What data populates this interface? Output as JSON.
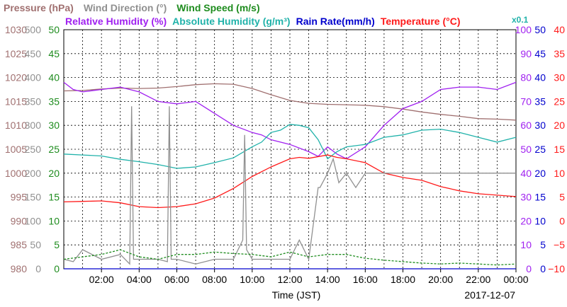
{
  "chart_data": {
    "type": "line",
    "date": "2017-12-07",
    "xlabel": "Time (JST)",
    "x_ticks": [
      "02:00",
      "04:00",
      "06:00",
      "08:00",
      "10:00",
      "12:00",
      "14:00",
      "16:00",
      "18:00",
      "20:00",
      "22:00",
      "00:00"
    ],
    "grid": true,
    "legend_row1": [
      {
        "key": "pressure",
        "text": "Pressure (hPa)",
        "color": "#a07070"
      },
      {
        "key": "winddir",
        "text": "Wind Direction (°)",
        "color": "#909090"
      },
      {
        "key": "windspeed",
        "text": "Wind Speed (m/s)",
        "color": "#1e8c1e"
      }
    ],
    "legend_row2": [
      {
        "key": "rh",
        "text": "Relative Humidity (%)",
        "color": "#a020f0"
      },
      {
        "key": "ah",
        "text": "Absolute Humidity (g/m³)",
        "color": "#20b2aa"
      },
      {
        "key": "rain",
        "text": "Rain Rate(mm/h)",
        "color": "#0000cd"
      },
      {
        "key": "temp",
        "text": "Temperature (°C)",
        "color": "#ff1a1a"
      }
    ],
    "ah_scale_note": "x0.1",
    "axes": {
      "pressure": {
        "min": 980,
        "max": 1030,
        "ticks": [
          980,
          985,
          990,
          995,
          1000,
          1005,
          1010,
          1015,
          1020,
          1025,
          1030
        ],
        "color": "#a07070"
      },
      "winddir": {
        "min": 0,
        "max": 500,
        "ticks": [
          0,
          50,
          100,
          150,
          200,
          250,
          300,
          350,
          400,
          450,
          500
        ],
        "color": "#909090"
      },
      "windspeed": {
        "min": 0,
        "max": 50,
        "ticks": [
          0,
          5,
          10,
          15,
          20,
          25,
          30,
          35,
          40,
          45,
          50
        ],
        "color": "#1e8c1e"
      },
      "rh": {
        "min": 0,
        "max": 100,
        "ticks": [
          0,
          10,
          20,
          30,
          40,
          50,
          60,
          70,
          80,
          90,
          100
        ],
        "color": "#a020f0"
      },
      "rain": {
        "min": 0,
        "max": 50,
        "ticks": [
          0,
          5,
          10,
          15,
          20,
          25,
          30,
          35,
          40,
          45,
          50
        ],
        "color": "#0000cd"
      },
      "temp": {
        "min": -10,
        "max": 40,
        "ticks": [
          -10,
          -5,
          0,
          5,
          10,
          15,
          20,
          25,
          30,
          35,
          40
        ],
        "color": "#ff1a1a"
      }
    },
    "series": [
      {
        "key": "pressure",
        "name": "Pressure (hPa)",
        "axis": "pressure",
        "color": "#a07070",
        "x": [
          0,
          1,
          2,
          3,
          4,
          5,
          6,
          7,
          8,
          9,
          10,
          11,
          12,
          13,
          14,
          15,
          16,
          17,
          18,
          19,
          20,
          21,
          22,
          23,
          24
        ],
        "y": [
          1017.2,
          1017.3,
          1017.6,
          1017.8,
          1017.7,
          1017.8,
          1018.1,
          1018.5,
          1018.7,
          1018.6,
          1017.7,
          1016.4,
          1015.2,
          1014.6,
          1014.4,
          1014.3,
          1014.2,
          1013.9,
          1013.4,
          1012.8,
          1012.3,
          1011.9,
          1011.4,
          1011.3,
          1011.1
        ]
      },
      {
        "key": "rh",
        "name": "Relative Humidity (%)",
        "axis": "rh",
        "color": "#a020f0",
        "x": [
          0,
          0.5,
          1,
          2,
          3,
          4,
          5,
          6,
          7,
          8,
          9,
          10,
          10.5,
          11,
          12,
          13,
          13.5,
          14,
          14.5,
          15,
          16,
          17,
          18,
          19,
          20,
          21,
          22,
          23,
          24
        ],
        "y": [
          78,
          75,
          74,
          75,
          76,
          74,
          70,
          69,
          70,
          65,
          60,
          57,
          56,
          54,
          52,
          49,
          47,
          51,
          48,
          46,
          51,
          60,
          67,
          70,
          75,
          76,
          76,
          75,
          78
        ]
      },
      {
        "key": "ah",
        "name": "Absolute Humidity (g/m³)",
        "axis": "windspeed",
        "color": "#20b2aa",
        "x": [
          0,
          1,
          2,
          3,
          4,
          5,
          6,
          7,
          8,
          9,
          10,
          10.5,
          11,
          11.5,
          12,
          12.5,
          13,
          13.5,
          14,
          14.5,
          15,
          16,
          17,
          18,
          19,
          20,
          21,
          22,
          23,
          24
        ],
        "y": [
          24,
          23.8,
          23.6,
          22.9,
          22.4,
          21.8,
          21,
          21.3,
          22.2,
          23.2,
          25.5,
          26.5,
          28.5,
          29,
          30.2,
          30,
          29.5,
          27,
          23,
          24.5,
          25.5,
          26,
          27.5,
          28,
          29,
          29.2,
          28.5,
          27.5,
          26.5,
          27.5
        ]
      },
      {
        "key": "temp",
        "name": "Temperature (°C)",
        "axis": "temp",
        "color": "#ff1a1a",
        "x": [
          0,
          1,
          2,
          3,
          4,
          5,
          6,
          7,
          8,
          9,
          10,
          11,
          12,
          12.5,
          13,
          14,
          14.5,
          15,
          16,
          17,
          18,
          19,
          20,
          21,
          22,
          23,
          24
        ],
        "y": [
          4,
          4.1,
          4.2,
          3.8,
          3,
          2.8,
          3,
          3.6,
          4.8,
          6.8,
          9.3,
          11.3,
          13,
          13.3,
          13.1,
          13.8,
          13.3,
          13,
          12.2,
          10,
          9.1,
          8.5,
          7.2,
          6.3,
          5.7,
          5.4,
          5.1
        ]
      },
      {
        "key": "winddir",
        "name": "Wind Direction (°)",
        "axis": "winddir",
        "color": "#909090",
        "x": [
          0,
          0.5,
          1,
          2,
          3,
          3.5,
          3.6,
          3.7,
          4,
          5,
          5.5,
          5.6,
          5.7,
          6,
          7,
          8,
          9,
          9.5,
          9.6,
          9.7,
          10,
          11,
          11.5,
          12,
          12.5,
          13,
          13.5,
          13.6,
          14,
          14.3,
          14.6,
          15,
          15.5,
          16,
          18,
          20,
          22,
          24
        ],
        "y": [
          20,
          15,
          40,
          20,
          30,
          10,
          340,
          20,
          20,
          20,
          15,
          340,
          20,
          20,
          10,
          20,
          20,
          60,
          280,
          40,
          20,
          20,
          20,
          20,
          60,
          20,
          170,
          170,
          200,
          230,
          180,
          200,
          170,
          200,
          200,
          200,
          200,
          200
        ]
      },
      {
        "key": "windspeed",
        "name": "Wind Speed (m/s)",
        "axis": "windspeed",
        "color": "#1e8c1e",
        "x": [
          0,
          1,
          2,
          3,
          4,
          5,
          6,
          7,
          8,
          9,
          10,
          11,
          12,
          13,
          14,
          15,
          16,
          17,
          18,
          19,
          20,
          21,
          22,
          23,
          24
        ],
        "y": [
          2,
          2.5,
          3,
          4,
          2.5,
          2,
          3,
          3,
          3.5,
          3.2,
          3,
          2.5,
          3.5,
          2.5,
          3,
          3,
          2.2,
          1.8,
          1.5,
          1.2,
          1,
          1.2,
          1,
          0.8,
          1
        ]
      },
      {
        "key": "rain",
        "name": "Rain Rate(mm/h)",
        "axis": "rain",
        "color": "#0000cd",
        "x": [
          0,
          24
        ],
        "y": [
          0,
          0
        ]
      }
    ]
  }
}
